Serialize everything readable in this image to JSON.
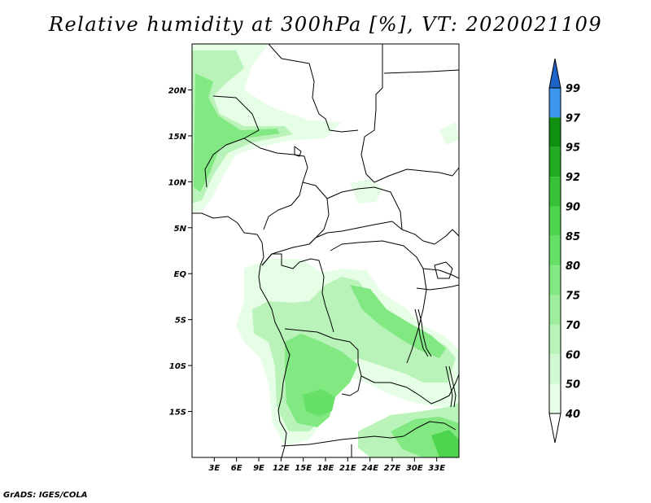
{
  "title": "Relative humidity at 300hPa [%], VT: 2020021109",
  "footer": "GrADS: IGES/COLA",
  "map": {
    "lon_range": [
      0,
      36
    ],
    "lat_range": [
      -20,
      25
    ],
    "lat_ticks": [
      {
        "value": 20,
        "label": "20N"
      },
      {
        "value": 15,
        "label": "15N"
      },
      {
        "value": 10,
        "label": "10N"
      },
      {
        "value": 5,
        "label": "5N"
      },
      {
        "value": 0,
        "label": "EQ"
      },
      {
        "value": -5,
        "label": "5S"
      },
      {
        "value": -10,
        "label": "10S"
      },
      {
        "value": -15,
        "label": "15S"
      }
    ],
    "lon_ticks": [
      {
        "value": 3,
        "label": "3E"
      },
      {
        "value": 6,
        "label": "6E"
      },
      {
        "value": 9,
        "label": "9E"
      },
      {
        "value": 12,
        "label": "12E"
      },
      {
        "value": 15,
        "label": "15E"
      },
      {
        "value": 18,
        "label": "18E"
      },
      {
        "value": 21,
        "label": "21E"
      },
      {
        "value": 24,
        "label": "24E"
      },
      {
        "value": 27,
        "label": "27E"
      },
      {
        "value": 30,
        "label": "30E"
      },
      {
        "value": 33,
        "label": "33E"
      }
    ]
  },
  "colorbar": {
    "levels": [
      {
        "label": "40",
        "color": "#e6fde6"
      },
      {
        "label": "50",
        "color": "#d2f8d2"
      },
      {
        "label": "60",
        "color": "#b9f3b9"
      },
      {
        "label": "70",
        "color": "#9eee9e"
      },
      {
        "label": "75",
        "color": "#82e882"
      },
      {
        "label": "80",
        "color": "#66e066"
      },
      {
        "label": "85",
        "color": "#4ed44e"
      },
      {
        "label": "90",
        "color": "#37c137"
      },
      {
        "label": "92",
        "color": "#22ab22"
      },
      {
        "label": "95",
        "color": "#109010"
      },
      {
        "label": "97",
        "color": "#3c96f0"
      },
      {
        "label": "99",
        "color": "#2478dc"
      }
    ],
    "top_color": "#1e64c8",
    "bottom_color": "#ffffff"
  },
  "colors": {
    "humid_light": "#e6fde6",
    "humid_mid": "#b9f3b9",
    "humid_high": "#82e882",
    "humid_peak": "#4ed44e",
    "border": "#000000"
  }
}
